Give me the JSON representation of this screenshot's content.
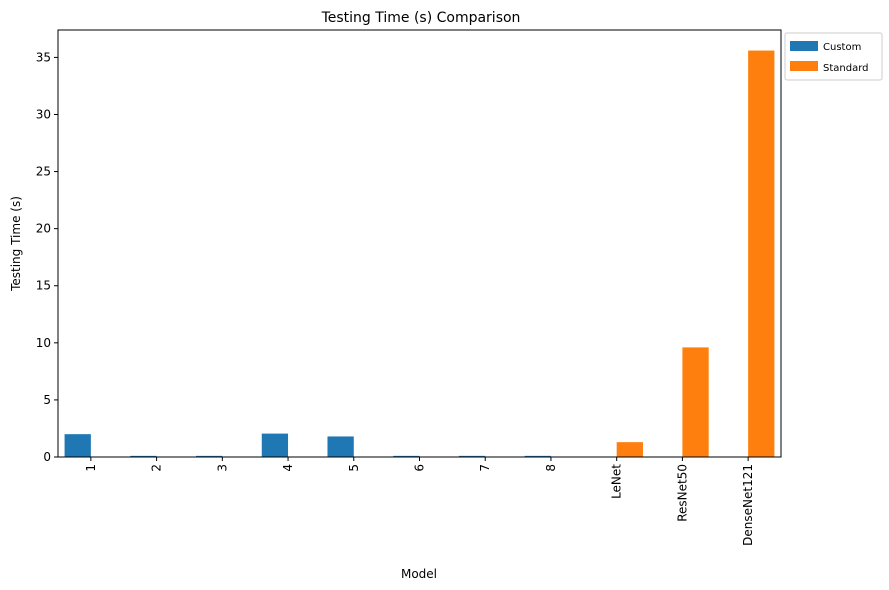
{
  "chart_data": {
    "type": "bar",
    "title": "Testing Time (s) Comparison",
    "xlabel": "Model",
    "ylabel": "Testing Time (s)",
    "categories": [
      "1",
      "2",
      "3",
      "4",
      "5",
      "6",
      "7",
      "8",
      "LeNet",
      "ResNet50",
      "DenseNet121"
    ],
    "series": [
      {
        "name": "Custom",
        "color": "#1f77b4",
        "values": [
          2.0,
          0.1,
          0.1,
          2.05,
          1.8,
          0.1,
          0.1,
          0.1,
          null,
          null,
          null
        ]
      },
      {
        "name": "Standard",
        "color": "#ff7f0e",
        "values": [
          null,
          null,
          null,
          null,
          null,
          null,
          null,
          null,
          1.3,
          9.6,
          35.6
        ]
      }
    ],
    "ylim": [
      0,
      37.4
    ],
    "yticks": [
      0,
      5,
      10,
      15,
      20,
      25,
      30,
      35
    ],
    "grid": false,
    "legend_position": "outside-top-right"
  }
}
